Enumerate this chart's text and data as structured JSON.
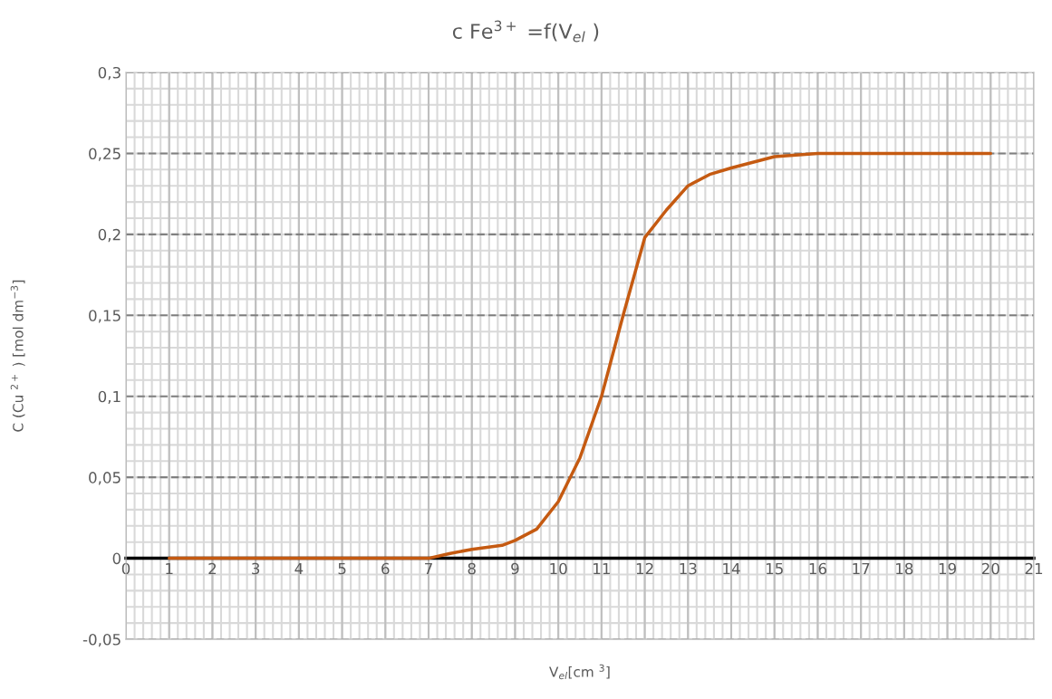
{
  "chart_data": {
    "type": "line",
    "title": "c Fe$^{3+}$ =f(V$_{el}$ )",
    "xlabel": "V$_{el}$[cm $^{3}$]",
    "ylabel": "C (Cu $^{2+}$ ) [mol dm$^{−3}$]",
    "series": [
      {
        "color": "#c55a11",
        "x": [
          1,
          2,
          3,
          4,
          5,
          6,
          7,
          7.5,
          8,
          8.7,
          9,
          9.5,
          10,
          10.5,
          11,
          11.5,
          12,
          12.5,
          13,
          13.5,
          14,
          15,
          16,
          17,
          18,
          19,
          20
        ],
        "values": [
          0,
          0,
          0,
          0,
          0,
          0,
          0,
          0.003,
          0.0055,
          0.008,
          0.011,
          0.018,
          0.035,
          0.062,
          0.1,
          0.15,
          0.198,
          0.215,
          0.23,
          0.237,
          0.241,
          0.248,
          0.25,
          0.25,
          0.25,
          0.25,
          0.25
        ]
      }
    ],
    "xlim": [
      0,
      21
    ],
    "xticks": [
      0,
      1,
      2,
      3,
      4,
      5,
      6,
      7,
      8,
      9,
      10,
      11,
      12,
      13,
      14,
      15,
      16,
      17,
      18,
      19,
      20,
      21
    ],
    "ylim": [
      -0.05,
      0.3
    ],
    "yticks": [
      {
        "value": -0.05,
        "label": "-0,05"
      },
      {
        "value": 0,
        "label": "0"
      },
      {
        "value": 0.05,
        "label": "0,05"
      },
      {
        "value": 0.1,
        "label": "0,1"
      },
      {
        "value": 0.15,
        "label": "0,15"
      },
      {
        "value": 0.2,
        "label": "0,2"
      },
      {
        "value": 0.25,
        "label": "0,25"
      },
      {
        "value": 0.3,
        "label": "0,3"
      }
    ],
    "grid": true,
    "marker": "none",
    "line_style": "solid"
  }
}
